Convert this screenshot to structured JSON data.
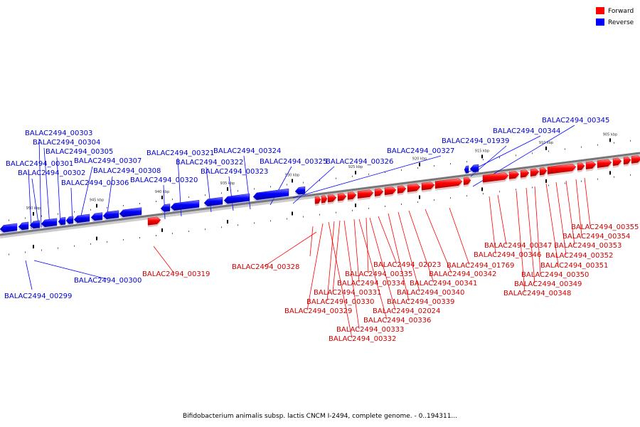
{
  "legend": {
    "items": [
      {
        "label": "Forward",
        "color": "#ff0000"
      },
      {
        "label": "Reverse",
        "color": "#0000ff"
      }
    ]
  },
  "caption": "Bifidobacterium animalis subsp. lactis CNCM I-2494, complete genome. - 0..194311...",
  "colors": {
    "forward": "#ff0000",
    "forward_label": "#cc0000",
    "reverse": "#0000ff",
    "reverse_label": "#0000cc",
    "backbone": "#777777"
  },
  "ticks": [
    {
      "label": "950 kbp"
    },
    {
      "label": "945 kbp"
    },
    {
      "label": "940 kbp"
    },
    {
      "label": "935 kbp"
    },
    {
      "label": "930 kbp"
    },
    {
      "label": "925 kbp"
    },
    {
      "label": "920 kbp"
    },
    {
      "label": "915 kbp"
    },
    {
      "label": "910 kbp"
    },
    {
      "label": "905 kbp"
    }
  ],
  "reverse_labels": [
    "BALAC2494_00303",
    "BALAC2494_00304",
    "BALAC2494_00305",
    "BALAC2494_00307",
    "BALAC2494_00301",
    "BALAC2494_00302",
    "BALAC2494_00308",
    "BALAC2494_00306",
    "BALAC2494_00321",
    "BALAC2494_00322",
    "BALAC2494_00320",
    "BALAC2494_00324",
    "BALAC2494_00323",
    "BALAC2494_00325",
    "BALAC2494_00326",
    "BALAC2494_00327",
    "BALAC2494_01939",
    "BALAC2494_00344",
    "BALAC2494_00345",
    "BALAC2494_00300",
    "BALAC2494_00299"
  ],
  "forward_labels": [
    "BALAC2494_00319",
    "BALAC2494_00328",
    "BALAC2494_00355",
    "BALAC2494_00354",
    "BALAC2494_00353",
    "BALAC2494_00347",
    "BALAC2494_00346",
    "BALAC2494_00352",
    "BALAC2494_00351",
    "BALAC2494_00350",
    "BALAC2494_00349",
    "BALAC2494_00348",
    "BALAC2494_01769",
    "BALAC2494_00342",
    "BALAC2494_00341",
    "BALAC2494_00340",
    "BALAC2494_00339",
    "BALAC2494_02023",
    "BALAC2494_00335",
    "BALAC2494_00334",
    "BALAC2494_00331",
    "BALAC2494_00330",
    "BALAC2494_00329",
    "BALAC2494_02024",
    "BALAC2494_00336",
    "BALAC2494_00333",
    "BALAC2494_00332"
  ]
}
